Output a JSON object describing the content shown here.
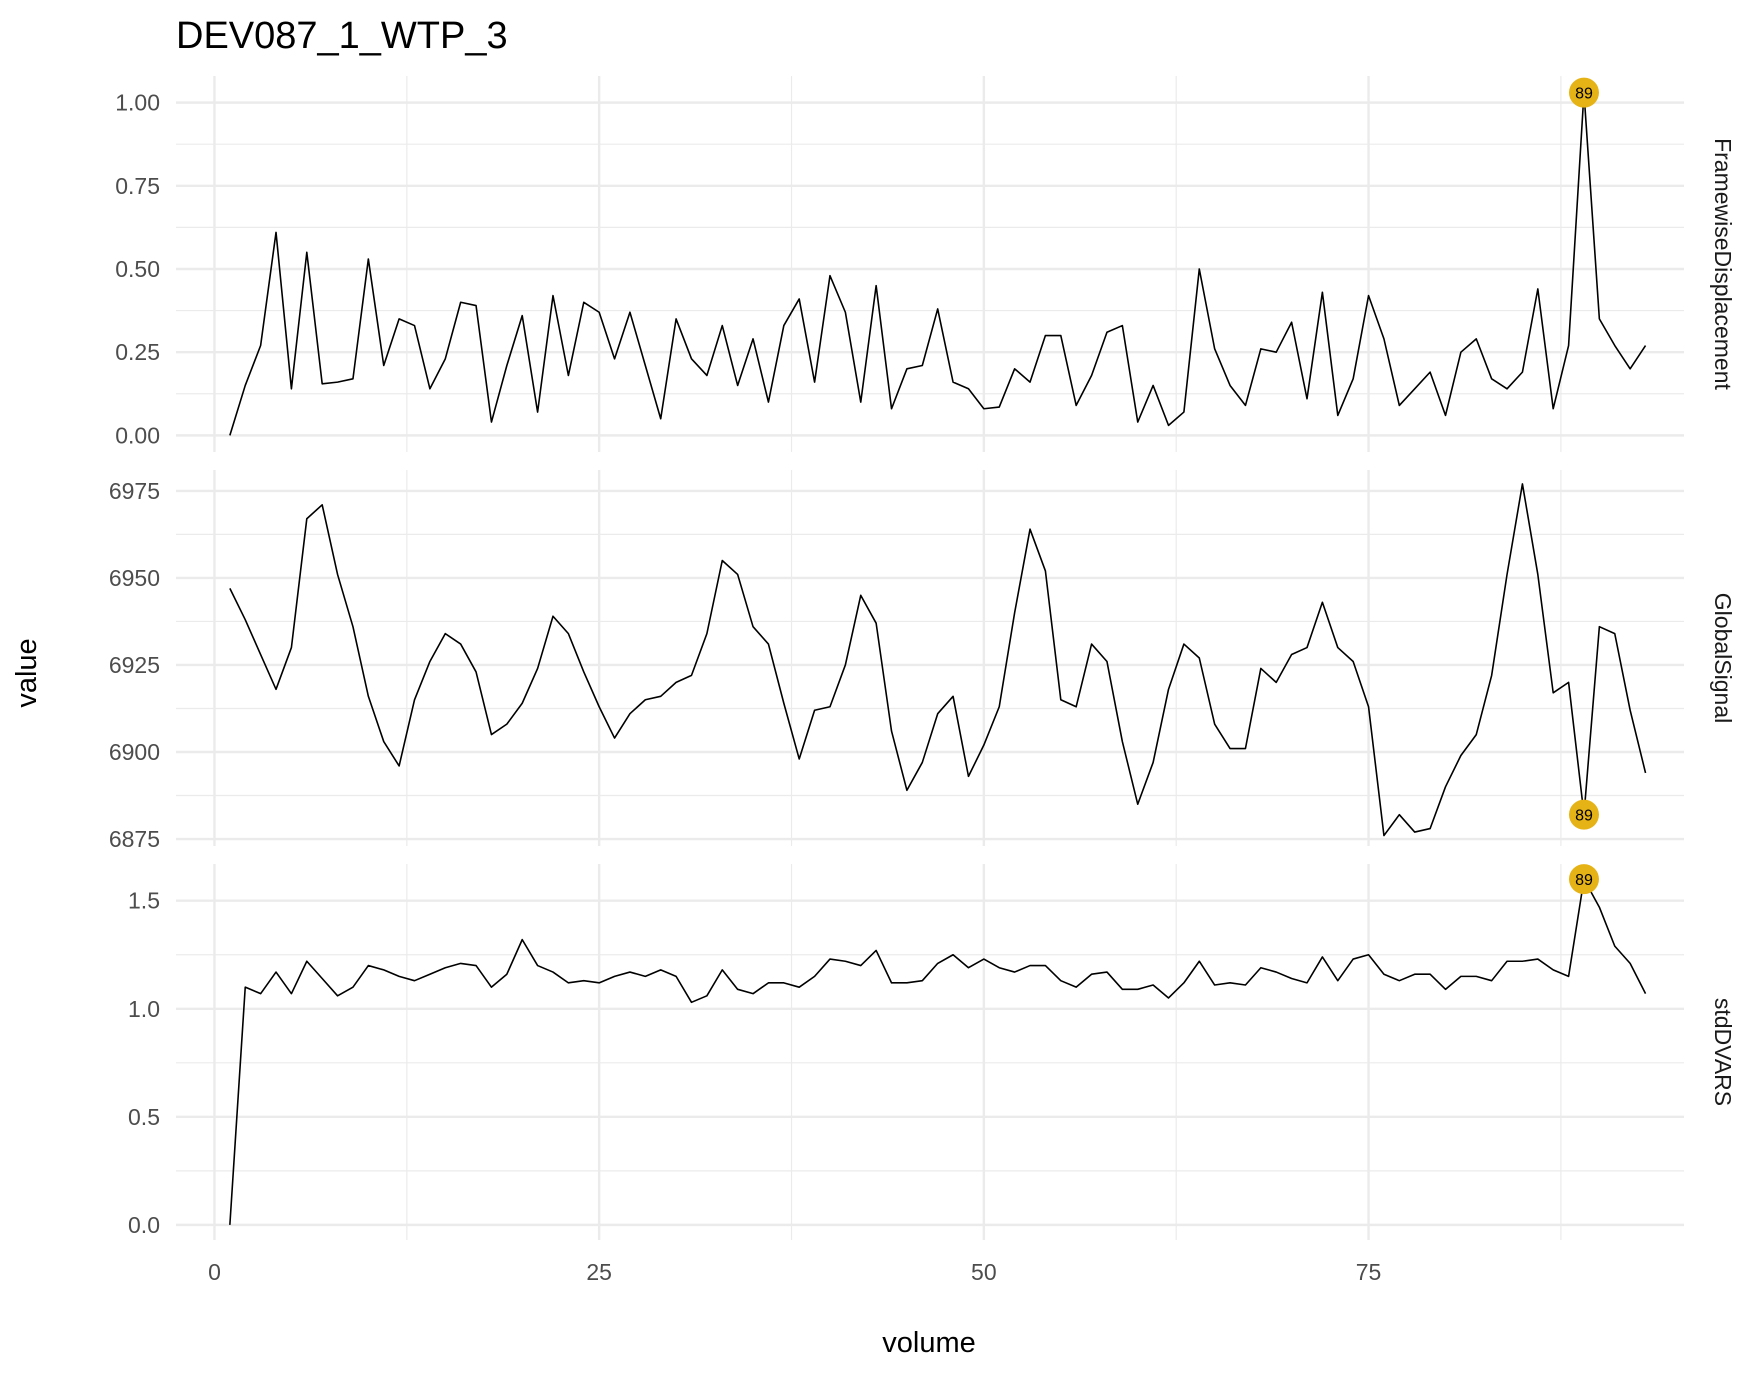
{
  "chart_data": {
    "type": "line",
    "title": "DEV087_1_WTP_3",
    "xlabel": "volume",
    "ylabel": "value",
    "xlim": [
      -2.5,
      95.5
    ],
    "x_ticks": [
      0,
      25,
      50,
      75
    ],
    "x_tick_labels": [
      "0",
      "25",
      "50",
      "75"
    ],
    "grid": true,
    "theme": "minimal",
    "line_color": "#000000",
    "highlight_color": "#E6B316",
    "highlight_volume": 89,
    "highlight_label": "89",
    "panels": [
      {
        "name": "FramewiseDisplacement",
        "ylim": [
          -0.05,
          1.08
        ],
        "y_ticks": [
          0,
          0.25,
          0.5,
          0.75,
          1.0
        ],
        "y_tick_labels": [
          "0.00",
          "0.25",
          "0.50",
          "0.75",
          "1.00"
        ],
        "highlight_value": 1.03,
        "values": [
          0.0,
          0.15,
          0.27,
          0.61,
          0.14,
          0.55,
          0.155,
          0.16,
          0.17,
          0.53,
          0.21,
          0.35,
          0.33,
          0.14,
          0.23,
          0.4,
          0.39,
          0.04,
          0.21,
          0.36,
          0.07,
          0.42,
          0.18,
          0.4,
          0.37,
          0.23,
          0.37,
          0.21,
          0.05,
          0.35,
          0.23,
          0.18,
          0.33,
          0.15,
          0.29,
          0.1,
          0.33,
          0.41,
          0.16,
          0.48,
          0.37,
          0.1,
          0.45,
          0.08,
          0.2,
          0.21,
          0.38,
          0.16,
          0.14,
          0.08,
          0.085,
          0.2,
          0.16,
          0.3,
          0.3,
          0.09,
          0.18,
          0.31,
          0.33,
          0.04,
          0.15,
          0.03,
          0.07,
          0.5,
          0.26,
          0.15,
          0.09,
          0.26,
          0.25,
          0.34,
          0.11,
          0.43,
          0.06,
          0.17,
          0.42,
          0.29,
          0.09,
          0.14,
          0.19,
          0.06,
          0.25,
          0.29,
          0.17,
          0.14,
          0.19,
          0.44,
          0.08,
          0.27,
          1.03,
          0.35,
          0.27,
          0.2,
          0.27
        ]
      },
      {
        "name": "GlobalSignal",
        "ylim": [
          6873,
          6981
        ],
        "y_ticks": [
          6875,
          6900,
          6925,
          6950,
          6975
        ],
        "y_tick_labels": [
          "6875",
          "6900",
          "6925",
          "6950",
          "6975"
        ],
        "highlight_value": 6882,
        "values": [
          6947,
          6938,
          6928,
          6918,
          6930,
          6967,
          6971,
          6951,
          6936,
          6916,
          6903,
          6896,
          6915,
          6926,
          6934,
          6931,
          6923,
          6905,
          6908,
          6914,
          6924,
          6939,
          6934,
          6923,
          6913,
          6904,
          6911,
          6915,
          6916,
          6920,
          6922,
          6934,
          6955,
          6951,
          6936,
          6931,
          6914,
          6898,
          6912,
          6913,
          6925,
          6945,
          6937,
          6906,
          6889,
          6897,
          6911,
          6916,
          6893,
          6902,
          6913,
          6940,
          6964,
          6952,
          6915,
          6913,
          6931,
          6926,
          6903,
          6885,
          6897,
          6918,
          6931,
          6927,
          6908,
          6901,
          6901,
          6924,
          6920,
          6928,
          6930,
          6943,
          6930,
          6926,
          6913,
          6876,
          6882,
          6877,
          6878,
          6890,
          6899,
          6905,
          6922,
          6951,
          6977,
          6951,
          6917,
          6920,
          6882,
          6936,
          6934,
          6912,
          6894
        ]
      },
      {
        "name": "stdDVARS",
        "ylim": [
          -0.07,
          1.67
        ],
        "y_ticks": [
          0,
          0.5,
          1.0,
          1.5
        ],
        "y_tick_labels": [
          "0.0",
          "0.5",
          "1.0",
          "1.5"
        ],
        "highlight_value": 1.6,
        "values": [
          0.0,
          1.1,
          1.07,
          1.17,
          1.07,
          1.22,
          1.14,
          1.06,
          1.1,
          1.2,
          1.18,
          1.15,
          1.13,
          1.16,
          1.19,
          1.21,
          1.2,
          1.1,
          1.16,
          1.32,
          1.2,
          1.17,
          1.12,
          1.13,
          1.12,
          1.15,
          1.17,
          1.15,
          1.18,
          1.15,
          1.03,
          1.06,
          1.18,
          1.09,
          1.07,
          1.12,
          1.12,
          1.1,
          1.15,
          1.23,
          1.22,
          1.2,
          1.27,
          1.12,
          1.12,
          1.13,
          1.21,
          1.25,
          1.19,
          1.23,
          1.19,
          1.17,
          1.2,
          1.2,
          1.13,
          1.1,
          1.16,
          1.17,
          1.09,
          1.09,
          1.11,
          1.05,
          1.12,
          1.22,
          1.11,
          1.12,
          1.11,
          1.19,
          1.17,
          1.14,
          1.12,
          1.24,
          1.13,
          1.23,
          1.25,
          1.16,
          1.13,
          1.16,
          1.16,
          1.09,
          1.15,
          1.15,
          1.13,
          1.22,
          1.22,
          1.23,
          1.18,
          1.15,
          1.6,
          1.47,
          1.29,
          1.21,
          1.07
        ]
      }
    ]
  }
}
